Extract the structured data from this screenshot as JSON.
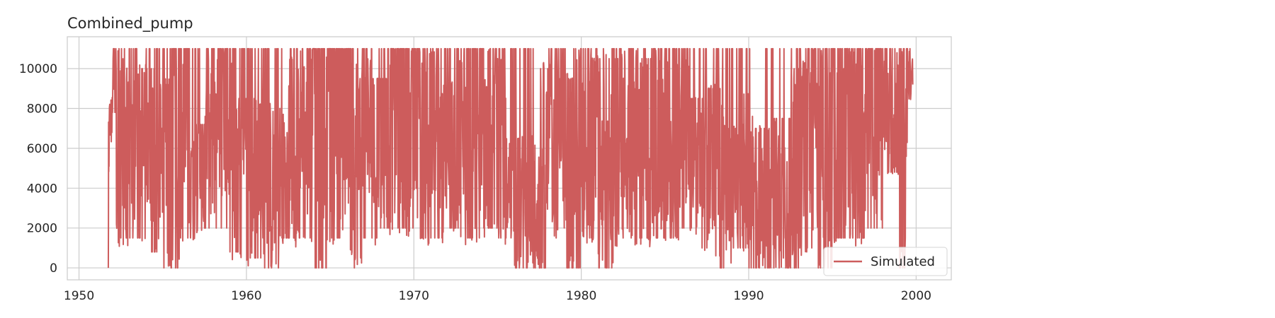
{
  "chart_data": {
    "type": "line",
    "title": "Combined_pump",
    "xlabel": "",
    "ylabel": "",
    "xlim": [
      1949.3,
      2002.1
    ],
    "ylim": [
      -600,
      11600
    ],
    "xticks": [
      1950,
      1960,
      1970,
      1980,
      1990,
      2000
    ],
    "yticks": [
      0,
      2000,
      4000,
      6000,
      8000,
      10000
    ],
    "grid": true,
    "legend_position": "bottom-right",
    "colors": {
      "series": "#cd5c5c",
      "grid": "#cccccc",
      "frame": "#cccccc"
    },
    "series": [
      {
        "name": "Simulated",
        "x_range": [
          1951.75,
          1999.8
        ],
        "y_min": 0,
        "y_max": 11000,
        "note_points": [
          [
            1951.75,
            0
          ],
          [
            1951.8,
            7000
          ],
          [
            1952.0,
            7800
          ],
          [
            1952.2,
            11000
          ],
          [
            1952.5,
            1500
          ],
          [
            1953.0,
            11000
          ],
          [
            1953.5,
            1500
          ],
          [
            1954.0,
            10000
          ],
          [
            1954.5,
            800
          ],
          [
            1955.0,
            9200
          ],
          [
            1955.5,
            0
          ],
          [
            1956.0,
            11000
          ],
          [
            1956.5,
            1500
          ],
          [
            1957.0,
            7200
          ],
          [
            1957.5,
            2000
          ],
          [
            1958.0,
            11000
          ],
          [
            1958.5,
            2000
          ],
          [
            1959.0,
            11000
          ],
          [
            1959.5,
            800
          ],
          [
            1960.0,
            8500
          ],
          [
            1960.5,
            500
          ],
          [
            1961.0,
            8200
          ],
          [
            1961.5,
            0
          ],
          [
            1962.0,
            8000
          ],
          [
            1962.5,
            1500
          ],
          [
            1963.0,
            11000
          ],
          [
            1963.5,
            1500
          ],
          [
            1964.0,
            11000
          ],
          [
            1964.5,
            0
          ],
          [
            1965.0,
            11000
          ],
          [
            1965.5,
            1500
          ],
          [
            1966.0,
            11000
          ],
          [
            1966.5,
            500
          ],
          [
            1967.0,
            11000
          ],
          [
            1967.5,
            1500
          ],
          [
            1968.0,
            9500
          ],
          [
            1968.5,
            2000
          ],
          [
            1969.0,
            11000
          ],
          [
            1969.5,
            2000
          ],
          [
            1970.0,
            11000
          ],
          [
            1970.5,
            1500
          ],
          [
            1971.0,
            11000
          ],
          [
            1971.5,
            1500
          ],
          [
            1972.0,
            9000
          ],
          [
            1972.5,
            2000
          ],
          [
            1973.0,
            11000
          ],
          [
            1973.5,
            1500
          ],
          [
            1974.0,
            11000
          ],
          [
            1974.5,
            2000
          ],
          [
            1975.0,
            10500
          ],
          [
            1975.5,
            1500
          ],
          [
            1976.0,
            6500
          ],
          [
            1976.3,
            0
          ],
          [
            1977.0,
            6500
          ],
          [
            1977.5,
            0
          ],
          [
            1978.0,
            10000
          ],
          [
            1978.5,
            1500
          ],
          [
            1979.0,
            9500
          ],
          [
            1979.5,
            0
          ],
          [
            1980.0,
            11000
          ],
          [
            1980.5,
            1500
          ],
          [
            1981.0,
            10500
          ],
          [
            1981.5,
            0
          ],
          [
            1982.0,
            10500
          ],
          [
            1982.5,
            1500
          ],
          [
            1983.0,
            11000
          ],
          [
            1983.5,
            1500
          ],
          [
            1984.0,
            10500
          ],
          [
            1984.5,
            1500
          ],
          [
            1985.0,
            11000
          ],
          [
            1985.5,
            1500
          ],
          [
            1986.0,
            11000
          ],
          [
            1986.5,
            2000
          ],
          [
            1987.0,
            8500
          ],
          [
            1987.5,
            1000
          ],
          [
            1988.0,
            9000
          ],
          [
            1988.5,
            0
          ],
          [
            1989.0,
            7000
          ],
          [
            1989.5,
            1000
          ],
          [
            1990.0,
            8400
          ],
          [
            1990.3,
            0
          ],
          [
            1991.0,
            7000
          ],
          [
            1991.5,
            0
          ],
          [
            1992.0,
            7500
          ],
          [
            1992.5,
            0
          ],
          [
            1993.0,
            10000
          ],
          [
            1993.5,
            1000
          ],
          [
            1994.0,
            11000
          ],
          [
            1994.5,
            0
          ],
          [
            1995.0,
            11000
          ],
          [
            1995.5,
            1500
          ],
          [
            1996.0,
            11000
          ],
          [
            1996.5,
            1500
          ],
          [
            1997.0,
            11000
          ],
          [
            1997.5,
            2000
          ],
          [
            1998.0,
            11000
          ],
          [
            1998.5,
            4800
          ],
          [
            1999.0,
            11000
          ],
          [
            1999.3,
            0
          ],
          [
            1999.5,
            10000
          ],
          [
            1999.8,
            9200
          ]
        ]
      }
    ]
  }
}
